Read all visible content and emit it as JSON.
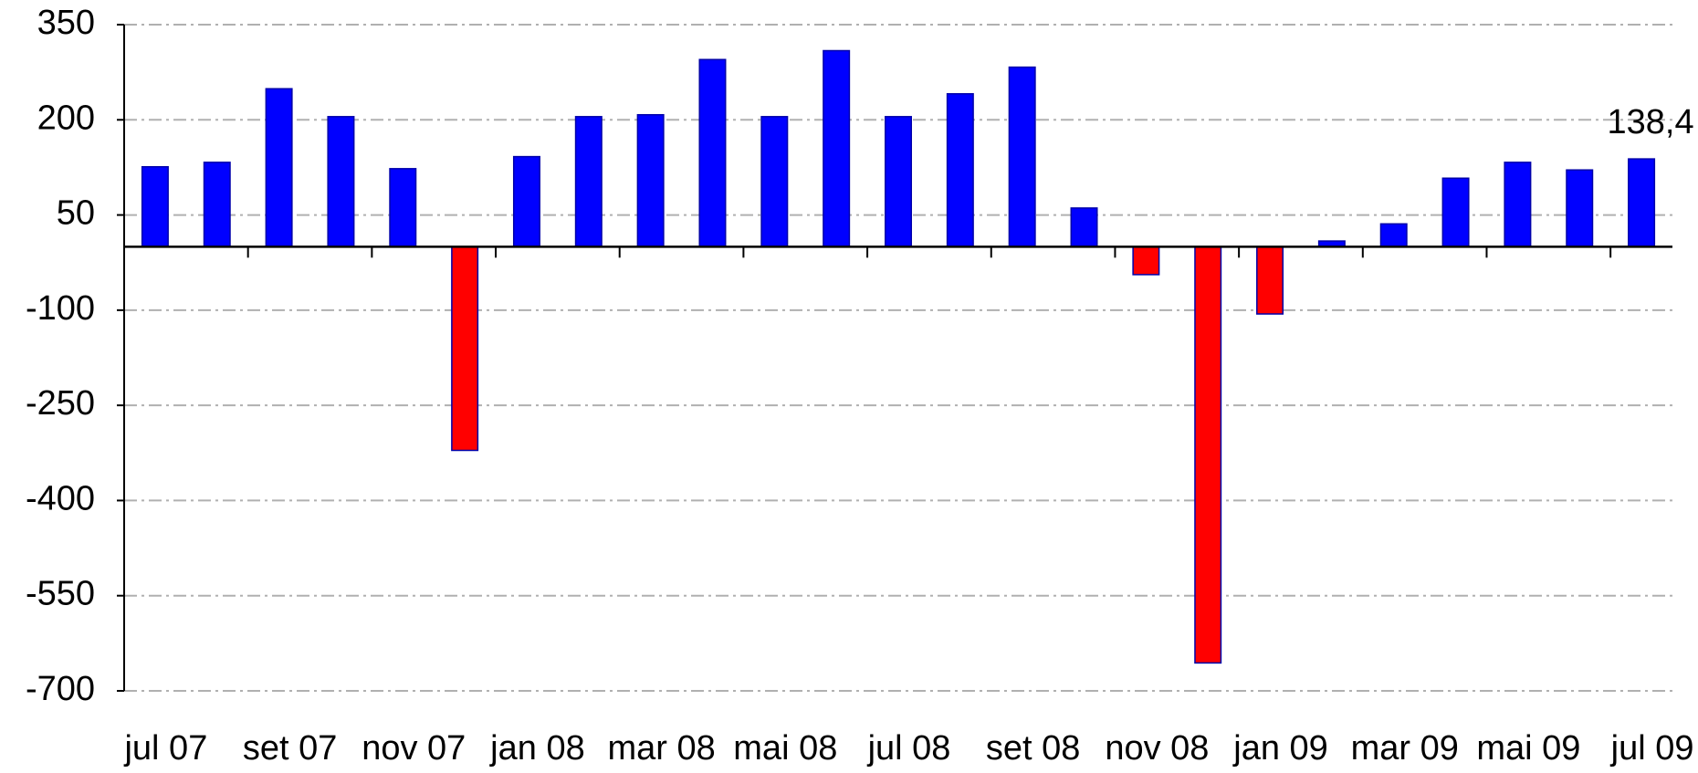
{
  "chart_data": {
    "type": "bar",
    "categories": [
      "jul 07",
      null,
      "set 07",
      null,
      "nov 07",
      null,
      "jan 08",
      null,
      "mar 08",
      null,
      "mai 08",
      null,
      "jul 08",
      null,
      "set 08",
      null,
      "nov 08",
      null,
      "jan 09",
      null,
      "mar 09",
      null,
      "mai 09",
      null,
      "jul 09"
    ],
    "values": [
      126,
      133,
      249,
      205,
      123,
      -321,
      142,
      205,
      208,
      295,
      205,
      309,
      205,
      241,
      283,
      61,
      -44,
      -656,
      -106,
      9,
      36,
      108,
      133,
      121,
      138.4
    ],
    "value_labels": [
      null,
      null,
      null,
      null,
      null,
      null,
      null,
      null,
      null,
      null,
      null,
      null,
      null,
      null,
      null,
      null,
      null,
      null,
      null,
      null,
      null,
      null,
      null,
      null,
      "138,4"
    ],
    "color": "#0000ff",
    "negative_color": "#ff0000",
    "ylim": [
      -700,
      350
    ],
    "yticks": [
      350,
      200,
      50,
      -100,
      -250,
      -400,
      -550,
      -700
    ],
    "grid": true
  }
}
